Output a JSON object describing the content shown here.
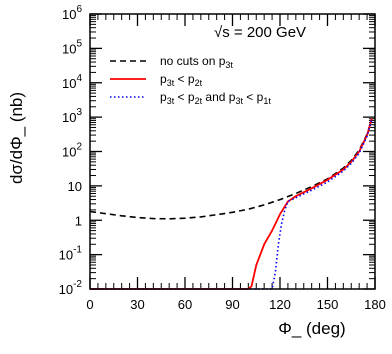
{
  "chart_data": {
    "type": "line",
    "title": "",
    "annotation": "√s = 200 GeV",
    "xlabel": "Φ_ (deg)",
    "ylabel": "dσ/dΦ_ (nb)",
    "xlim": [
      0,
      180
    ],
    "ylim": [
      0.01,
      1000000
    ],
    "yscale": "log",
    "grid": false,
    "legend_position": "top-left",
    "x_ticks": [
      "0",
      "30",
      "60",
      "90",
      "120",
      "150",
      "180"
    ],
    "y_ticks": [
      {
        "value": 1000000,
        "base": "10",
        "exp": "6"
      },
      {
        "value": 100000,
        "base": "10",
        "exp": "5"
      },
      {
        "value": 10000,
        "base": "10",
        "exp": "4"
      },
      {
        "value": 1000,
        "base": "10",
        "exp": "3"
      },
      {
        "value": 100,
        "base": "10",
        "exp": "2"
      },
      {
        "value": 10,
        "base": "10",
        "exp": ""
      },
      {
        "value": 1,
        "base": "1",
        "exp": ""
      },
      {
        "value": 0.1,
        "base": "10",
        "exp": "-1"
      },
      {
        "value": 0.01,
        "base": "10",
        "exp": "-2"
      }
    ],
    "series": [
      {
        "name": "no cuts on p3t",
        "legend": {
          "main": "no cuts on p",
          "sub": "3t",
          "rest": ""
        },
        "color": "#000000",
        "style": "dashed",
        "x": [
          0,
          10,
          20,
          30,
          40,
          50,
          60,
          70,
          80,
          90,
          100,
          110,
          120,
          130,
          140,
          150,
          160,
          165,
          170,
          175,
          178
        ],
        "y": [
          1.8,
          1.55,
          1.35,
          1.2,
          1.12,
          1.1,
          1.15,
          1.25,
          1.45,
          1.7,
          2.1,
          2.8,
          4.0,
          6.0,
          9.5,
          16,
          33,
          55,
          110,
          320,
          900
        ]
      },
      {
        "name": "p3t < p2t",
        "legend": {
          "main": "p",
          "sub": "3t",
          "rest": " < p",
          "sub2": "2t"
        },
        "color": "#ff0000",
        "style": "solid",
        "x": [
          0,
          50,
          100,
          102,
          105,
          110,
          115,
          120,
          125,
          130,
          140,
          150,
          160,
          165,
          170,
          175,
          178
        ],
        "y": [
          0.01,
          0.01,
          0.01,
          0.012,
          0.05,
          0.2,
          0.5,
          1.5,
          3.5,
          5.0,
          8.5,
          15,
          30,
          50,
          100,
          300,
          900
        ]
      },
      {
        "name": "p3t < p2t and p3t < p1t",
        "legend": {
          "main": "p",
          "sub": "3t",
          "rest": " < p",
          "sub2": "2t",
          "rest2": " and p",
          "sub3": "3t",
          "rest3": " < p",
          "sub4": "1t"
        },
        "color": "#0000ff",
        "style": "dotted",
        "x": [
          0,
          60,
          115,
          117,
          119,
          121,
          123,
          125,
          130,
          140,
          150,
          160,
          165,
          170,
          175,
          178
        ],
        "y": [
          0.01,
          0.01,
          0.01,
          0.03,
          0.2,
          0.8,
          2.0,
          3.5,
          4.5,
          7.5,
          13,
          27,
          45,
          90,
          280,
          850
        ]
      }
    ]
  }
}
